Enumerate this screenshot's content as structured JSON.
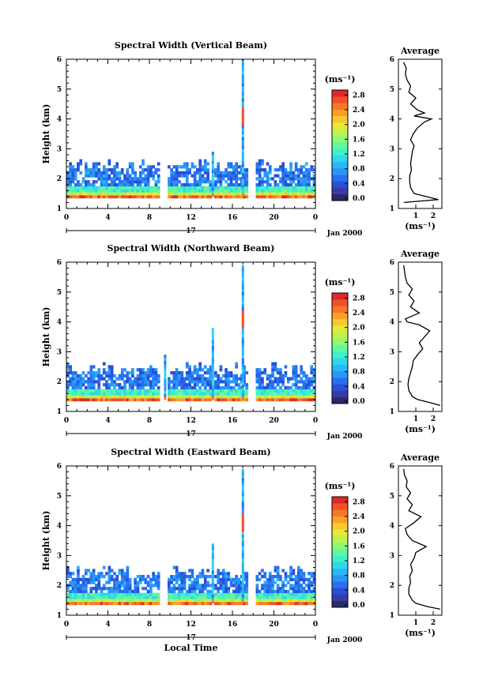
{
  "figure": {
    "xlabel": "Local Time",
    "ylabel": "Height (km)",
    "date_label": "17",
    "month_label": "Jan 2000",
    "unit": "(ms⁻¹)",
    "avg_title": "Average"
  },
  "colorbar": {
    "ticks": [
      "0.0",
      "0.4",
      "0.8",
      "1.2",
      "1.6",
      "2.0",
      "2.4",
      "2.8"
    ],
    "colors": [
      "#2a2a66",
      "#3a3aa8",
      "#2850d8",
      "#2870f0",
      "#2898f8",
      "#28b8f8",
      "#30d8e8",
      "#40f0c8",
      "#60f8a0",
      "#90f870",
      "#c0f050",
      "#e8e838",
      "#f8c830",
      "#f8a028",
      "#f87828",
      "#f05028",
      "#e02828"
    ]
  },
  "chart_data": [
    {
      "type": "heatmap",
      "title": "Spectral Width (Vertical Beam)",
      "xlim": [
        0,
        24
      ],
      "ylim": [
        1,
        6
      ],
      "xticks": [
        "0",
        "4",
        "8",
        "12",
        "16",
        "20",
        "0"
      ],
      "yticks": [
        "1",
        "2",
        "3",
        "4",
        "5",
        "6"
      ],
      "value_range": [
        0,
        3.0
      ],
      "gaps_hours": [
        [
          9.0,
          9.6
        ],
        [
          13.8,
          14.2
        ],
        [
          17.4,
          18.1
        ]
      ],
      "spikes": [
        {
          "x": 14.0,
          "y0": 1.4,
          "y1": 2.9
        },
        {
          "x": 16.9,
          "y0": 1.4,
          "y1": 5.9
        }
      ],
      "average_profile": {
        "xlim": [
          0,
          2.5
        ],
        "xticks": [
          "1",
          "2"
        ],
        "xlabel": "(ms⁻¹)",
        "height_km": [
          1.2,
          1.3,
          1.4,
          1.5,
          1.7,
          1.9,
          2.1,
          2.3,
          2.5,
          2.7,
          2.9,
          3.1,
          3.3,
          3.5,
          3.7,
          3.9,
          4.0,
          4.1,
          4.2,
          4.3,
          4.5,
          4.7,
          4.9,
          5.1,
          5.3,
          5.5,
          5.7,
          5.9
        ],
        "width_ms": [
          0.3,
          2.3,
          1.6,
          0.9,
          0.7,
          0.65,
          0.65,
          0.75,
          0.7,
          0.75,
          0.8,
          0.9,
          0.7,
          0.85,
          1.1,
          1.5,
          1.9,
          0.9,
          1.5,
          1.1,
          0.7,
          1.0,
          0.6,
          0.7,
          0.5,
          0.4,
          0.45,
          0.3
        ]
      }
    },
    {
      "type": "heatmap",
      "title": "Spectral Width (Northward Beam)",
      "xlim": [
        0,
        24
      ],
      "ylim": [
        1,
        6
      ],
      "xticks": [
        "0",
        "4",
        "8",
        "12",
        "16",
        "20",
        "0"
      ],
      "yticks": [
        "1",
        "2",
        "3",
        "4",
        "5",
        "6"
      ],
      "value_range": [
        0,
        3.0
      ],
      "gaps_hours": [
        [
          9.0,
          9.6
        ],
        [
          13.8,
          14.2
        ],
        [
          17.4,
          18.1
        ]
      ],
      "spikes": [
        {
          "x": 9.4,
          "y0": 1.4,
          "y1": 2.9
        },
        {
          "x": 14.0,
          "y0": 1.4,
          "y1": 3.8
        },
        {
          "x": 16.9,
          "y0": 1.4,
          "y1": 5.8
        }
      ],
      "average_profile": {
        "xlim": [
          0,
          2.5
        ],
        "xticks": [
          "1",
          "2"
        ],
        "xlabel": "(ms⁻¹)",
        "height_km": [
          1.2,
          1.3,
          1.4,
          1.5,
          1.7,
          1.9,
          2.1,
          2.3,
          2.5,
          2.7,
          2.9,
          3.1,
          3.3,
          3.5,
          3.7,
          3.9,
          4.0,
          4.1,
          4.3,
          4.5,
          4.7,
          4.9,
          5.1,
          5.3,
          5.5,
          5.7,
          5.9
        ],
        "width_ms": [
          2.4,
          1.8,
          1.1,
          0.8,
          0.6,
          0.55,
          0.6,
          0.7,
          0.8,
          0.85,
          1.1,
          1.4,
          1.2,
          1.5,
          1.8,
          1.2,
          0.5,
          0.4,
          1.2,
          0.7,
          0.9,
          0.6,
          0.8,
          0.5,
          0.4,
          0.35,
          0.3
        ]
      }
    },
    {
      "type": "heatmap",
      "title": "Spectral Width (Eastward Beam)",
      "xlim": [
        0,
        24
      ],
      "ylim": [
        1,
        6
      ],
      "xticks": [
        "0",
        "4",
        "8",
        "12",
        "16",
        "20",
        "0"
      ],
      "yticks": [
        "1",
        "2",
        "3",
        "4",
        "5",
        "6"
      ],
      "value_range": [
        0,
        3.0
      ],
      "gaps_hours": [
        [
          9.0,
          9.6
        ],
        [
          13.8,
          14.2
        ],
        [
          17.4,
          18.1
        ]
      ],
      "spikes": [
        {
          "x": 14.0,
          "y0": 1.4,
          "y1": 3.4
        },
        {
          "x": 16.9,
          "y0": 1.4,
          "y1": 5.8
        }
      ],
      "average_profile": {
        "xlim": [
          0,
          2.5
        ],
        "xticks": [
          "1",
          "2"
        ],
        "xlabel": "(ms⁻¹)",
        "height_km": [
          1.2,
          1.3,
          1.4,
          1.5,
          1.7,
          1.9,
          2.1,
          2.3,
          2.5,
          2.7,
          2.9,
          3.1,
          3.3,
          3.5,
          3.7,
          3.9,
          4.1,
          4.3,
          4.5,
          4.7,
          4.9,
          5.1,
          5.3,
          5.5,
          5.7,
          5.9
        ],
        "width_ms": [
          2.4,
          1.6,
          1.0,
          0.8,
          0.6,
          0.6,
          0.7,
          0.65,
          0.8,
          0.7,
          0.9,
          1.0,
          1.6,
          0.8,
          0.5,
          0.4,
          0.9,
          1.3,
          0.6,
          0.8,
          0.5,
          0.7,
          0.45,
          0.5,
          0.35,
          0.3
        ]
      }
    }
  ]
}
